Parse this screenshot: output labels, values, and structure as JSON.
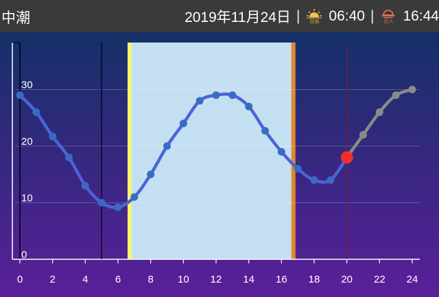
{
  "header": {
    "tide_name": "中潮",
    "date": "2019年11月24日",
    "separator": "|",
    "sunrise_label": "日出",
    "sunrise_time": "06:40",
    "sunset_label": "日入",
    "sunset_time": "16:44"
  },
  "chart_data": {
    "type": "line",
    "x": [
      0,
      1,
      2,
      3,
      4,
      5,
      6,
      7,
      8,
      9,
      10,
      11,
      12,
      13,
      14,
      15,
      16,
      17,
      18,
      19,
      20,
      21,
      22,
      23,
      24
    ],
    "y": [
      29,
      26,
      21.7,
      18,
      13,
      10,
      9.2,
      11,
      15,
      20,
      24,
      28,
      29,
      29,
      27,
      22.7,
      19,
      16,
      14,
      14,
      18,
      22,
      26,
      29,
      30
    ],
    "x_ticks": [
      0,
      2,
      4,
      6,
      8,
      10,
      12,
      14,
      16,
      18,
      20,
      22,
      24
    ],
    "y_ticks": [
      0,
      10,
      20,
      30
    ],
    "xlim": [
      0,
      24
    ],
    "ylim": [
      0,
      40
    ],
    "daylight_start": 6.67,
    "daylight_end": 16.73,
    "current_time": 20,
    "current_value": 18,
    "marker_line": 5,
    "colors": {
      "background_top": "#143068",
      "background_bottom": "#5b1f9a",
      "daylight": "#c4dff2",
      "sunrise_bar": "#f6f56b",
      "sunset_bar": "#e1882c",
      "line": "#4b64d6",
      "point": "#3a6bc4",
      "future": "#8a8a8a",
      "current": "#ef2f2a"
    }
  }
}
